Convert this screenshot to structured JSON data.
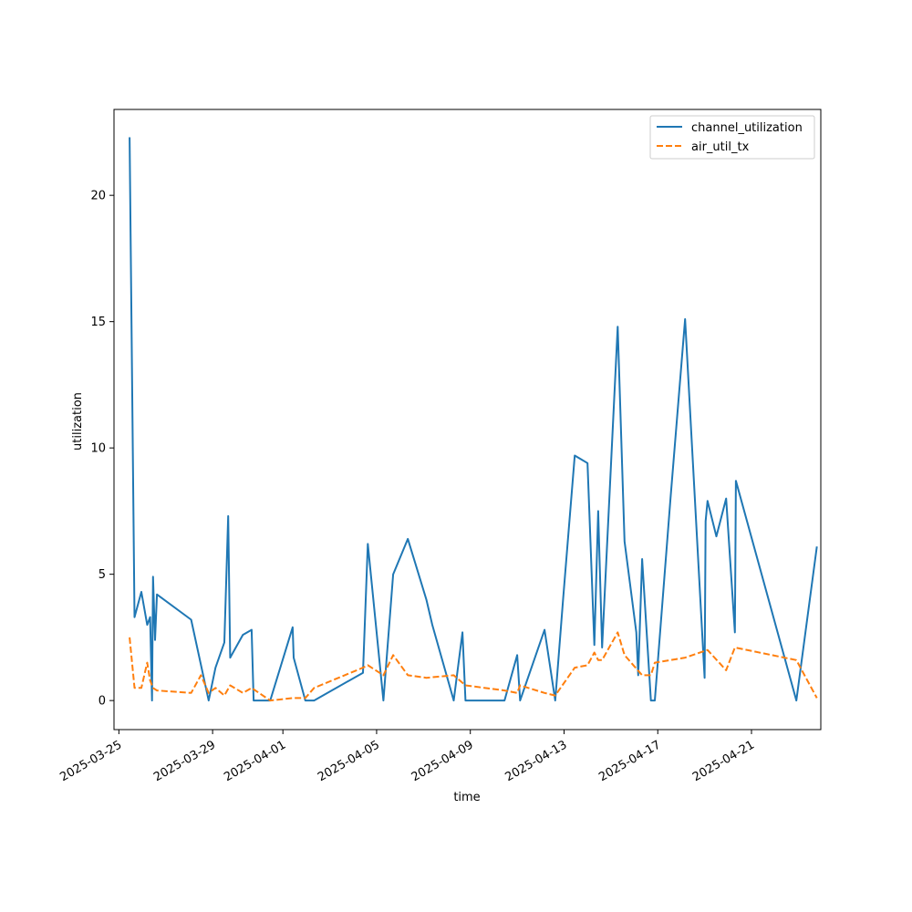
{
  "chart_data": {
    "type": "line",
    "title": "",
    "xlabel": "time",
    "ylabel": "utilization",
    "x_type": "date",
    "xlim": [
      "2025-03-24 19:00",
      "2025-04-23 23:00"
    ],
    "ylim": [
      -1.15,
      23.4
    ],
    "x_ticks": [
      "2025-03-25",
      "2025-03-29",
      "2025-04-01",
      "2025-04-05",
      "2025-04-09",
      "2025-04-13",
      "2025-04-17",
      "2025-04-21"
    ],
    "y_ticks": [
      0,
      5,
      10,
      15,
      20
    ],
    "grid": false,
    "legend_position": "top-right",
    "series": [
      {
        "name": "channel_utilization",
        "color": "#1f77b4",
        "style": "solid",
        "points": [
          [
            "2025-03-25 11:00",
            22.3
          ],
          [
            "2025-03-25 16:00",
            3.3
          ],
          [
            "2025-03-25 23:00",
            4.3
          ],
          [
            "2025-03-26 05:00",
            3.0
          ],
          [
            "2025-03-26 08:00",
            3.3
          ],
          [
            "2025-03-26 10:00",
            0.0
          ],
          [
            "2025-03-26 11:00",
            4.9
          ],
          [
            "2025-03-26 13:00",
            2.4
          ],
          [
            "2025-03-26 15:00",
            4.2
          ],
          [
            "2025-03-28 02:00",
            3.2
          ],
          [
            "2025-03-28 20:00",
            0.0
          ],
          [
            "2025-03-29 03:00",
            1.3
          ],
          [
            "2025-03-29 12:00",
            2.3
          ],
          [
            "2025-03-29 16:00",
            7.3
          ],
          [
            "2025-03-29 18:00",
            1.7
          ],
          [
            "2025-03-30 07:00",
            2.6
          ],
          [
            "2025-03-30 16:00",
            2.8
          ],
          [
            "2025-03-30 18:00",
            0.0
          ],
          [
            "2025-03-31 11:00",
            0.0
          ],
          [
            "2025-04-01 10:00",
            2.9
          ],
          [
            "2025-04-01 11:00",
            1.7
          ],
          [
            "2025-04-01 23:00",
            0.0
          ],
          [
            "2025-04-02 08:00",
            0.0
          ],
          [
            "2025-04-04 10:00",
            1.1
          ],
          [
            "2025-04-04 15:00",
            6.2
          ],
          [
            "2025-04-05 07:00",
            0.0
          ],
          [
            "2025-04-05 17:00",
            5.0
          ],
          [
            "2025-04-06 08:00",
            6.4
          ],
          [
            "2025-04-07 03:00",
            4.0
          ],
          [
            "2025-04-07 09:00",
            3.0
          ],
          [
            "2025-04-08 07:00",
            0.0
          ],
          [
            "2025-04-08 16:00",
            2.7
          ],
          [
            "2025-04-08 19:00",
            0.0
          ],
          [
            "2025-04-10 11:00",
            0.0
          ],
          [
            "2025-04-11 00:00",
            1.8
          ],
          [
            "2025-04-11 03:00",
            0.0
          ],
          [
            "2025-04-12 04:00",
            2.8
          ],
          [
            "2025-04-12 15:00",
            0.0
          ],
          [
            "2025-04-12 23:00",
            4.0
          ],
          [
            "2025-04-13 11:00",
            9.7
          ],
          [
            "2025-04-14 00:00",
            9.4
          ],
          [
            "2025-04-14 07:00",
            2.2
          ],
          [
            "2025-04-14 11:00",
            7.5
          ],
          [
            "2025-04-14 15:00",
            2.1
          ],
          [
            "2025-04-15 07:00",
            14.8
          ],
          [
            "2025-04-15 14:00",
            6.3
          ],
          [
            "2025-04-16 02:00",
            2.7
          ],
          [
            "2025-04-16 04:00",
            1.0
          ],
          [
            "2025-04-16 08:00",
            5.6
          ],
          [
            "2025-04-16 17:00",
            0.0
          ],
          [
            "2025-04-16 21:00",
            0.0
          ],
          [
            "2025-04-17 13:00",
            8.0
          ],
          [
            "2025-04-18 04:00",
            15.1
          ],
          [
            "2025-04-19 00:00",
            0.9
          ],
          [
            "2025-04-19 01:00",
            7.1
          ],
          [
            "2025-04-19 03:00",
            7.9
          ],
          [
            "2025-04-19 12:00",
            6.5
          ],
          [
            "2025-04-19 22:00",
            8.0
          ],
          [
            "2025-04-20 07:00",
            2.7
          ],
          [
            "2025-04-20 08:00",
            8.7
          ],
          [
            "2025-04-22 22:00",
            0.0
          ],
          [
            "2025-04-23 19:00",
            6.1
          ]
        ]
      },
      {
        "name": "air_util_tx",
        "color": "#ff7f0e",
        "style": "dashed",
        "points": [
          [
            "2025-03-25 11:00",
            2.5
          ],
          [
            "2025-03-25 16:00",
            0.5
          ],
          [
            "2025-03-25 23:00",
            0.5
          ],
          [
            "2025-03-26 05:00",
            1.5
          ],
          [
            "2025-03-26 08:00",
            0.8
          ],
          [
            "2025-03-26 11:00",
            0.5
          ],
          [
            "2025-03-26 15:00",
            0.4
          ],
          [
            "2025-03-28 02:00",
            0.3
          ],
          [
            "2025-03-28 12:00",
            1.0
          ],
          [
            "2025-03-28 20:00",
            0.3
          ],
          [
            "2025-03-29 03:00",
            0.5
          ],
          [
            "2025-03-29 12:00",
            0.2
          ],
          [
            "2025-03-29 18:00",
            0.6
          ],
          [
            "2025-03-30 07:00",
            0.3
          ],
          [
            "2025-03-30 16:00",
            0.5
          ],
          [
            "2025-03-31 11:00",
            0.0
          ],
          [
            "2025-04-01 10:00",
            0.1
          ],
          [
            "2025-04-01 23:00",
            0.1
          ],
          [
            "2025-04-02 08:00",
            0.5
          ],
          [
            "2025-04-04 10:00",
            1.3
          ],
          [
            "2025-04-04 15:00",
            1.4
          ],
          [
            "2025-04-05 07:00",
            1.0
          ],
          [
            "2025-04-05 17:00",
            1.8
          ],
          [
            "2025-04-06 08:00",
            1.0
          ],
          [
            "2025-04-07 03:00",
            0.9
          ],
          [
            "2025-04-08 07:00",
            1.0
          ],
          [
            "2025-04-08 19:00",
            0.6
          ],
          [
            "2025-04-10 11:00",
            0.4
          ],
          [
            "2025-04-11 00:00",
            0.3
          ],
          [
            "2025-04-11 03:00",
            0.6
          ],
          [
            "2025-04-12 04:00",
            0.3
          ],
          [
            "2025-04-12 15:00",
            0.2
          ],
          [
            "2025-04-13 11:00",
            1.3
          ],
          [
            "2025-04-14 00:00",
            1.4
          ],
          [
            "2025-04-14 07:00",
            1.9
          ],
          [
            "2025-04-14 11:00",
            1.6
          ],
          [
            "2025-04-14 15:00",
            1.6
          ],
          [
            "2025-04-15 07:00",
            2.7
          ],
          [
            "2025-04-15 14:00",
            1.8
          ],
          [
            "2025-04-16 08:00",
            1.0
          ],
          [
            "2025-04-16 17:00",
            1.0
          ],
          [
            "2025-04-16 21:00",
            1.5
          ],
          [
            "2025-04-17 13:00",
            1.6
          ],
          [
            "2025-04-18 04:00",
            1.7
          ],
          [
            "2025-04-19 03:00",
            2.0
          ],
          [
            "2025-04-19 22:00",
            1.2
          ],
          [
            "2025-04-20 07:00",
            2.1
          ],
          [
            "2025-04-22 22:00",
            1.6
          ],
          [
            "2025-04-23 19:00",
            0.1
          ]
        ]
      }
    ]
  }
}
